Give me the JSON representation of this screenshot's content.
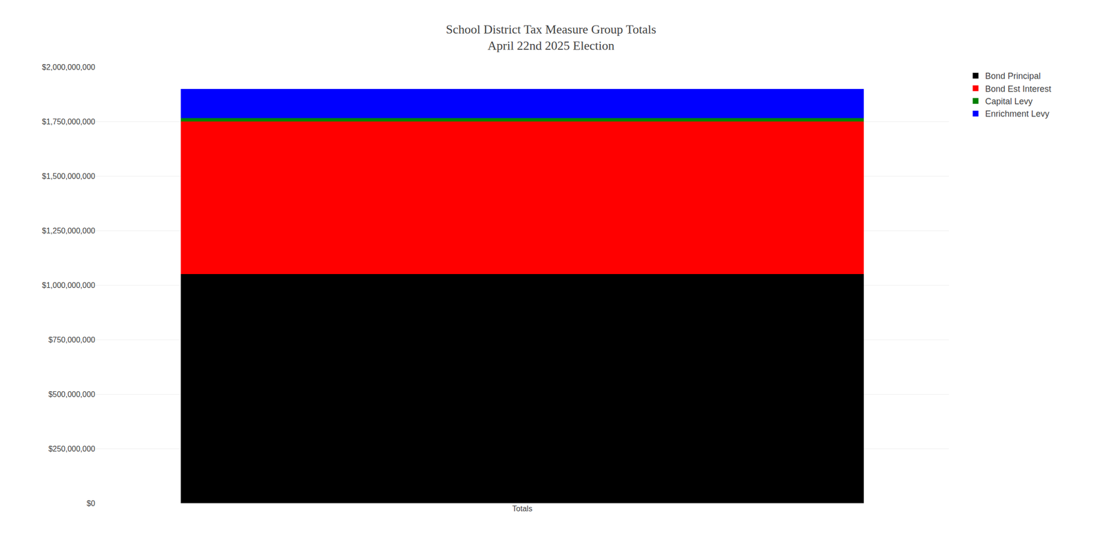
{
  "chart_data": {
    "type": "bar",
    "title": "School District Tax Measure Group Totals\nApril 22nd 2025 Election",
    "categories": [
      "Totals"
    ],
    "series": [
      {
        "name": "Bond Principal",
        "color": "#000000",
        "values": [
          1050000000
        ]
      },
      {
        "name": "Bond Est Interest",
        "color": "#ff0000",
        "values": [
          700000000
        ]
      },
      {
        "name": "Capital Levy",
        "color": "#008000",
        "values": [
          15000000
        ]
      },
      {
        "name": "Enrichment Levy",
        "color": "#0000ff",
        "values": [
          135000000
        ]
      }
    ],
    "stacked": true,
    "ylim": [
      0,
      2000000000
    ],
    "yticks": [
      {
        "value": 0,
        "label": "$0"
      },
      {
        "value": 250000000,
        "label": "$250,000,000"
      },
      {
        "value": 500000000,
        "label": "$500,000,000"
      },
      {
        "value": 750000000,
        "label": "$750,000,000"
      },
      {
        "value": 1000000000,
        "label": "$1,000,000,000"
      },
      {
        "value": 1250000000,
        "label": "$1,250,000,000"
      },
      {
        "value": 1500000000,
        "label": "$1,500,000,000"
      },
      {
        "value": 1750000000,
        "label": "$1,750,000,000"
      },
      {
        "value": 2000000000,
        "label": "$2,000,000,000"
      }
    ],
    "grid": true,
    "legend": "right"
  }
}
